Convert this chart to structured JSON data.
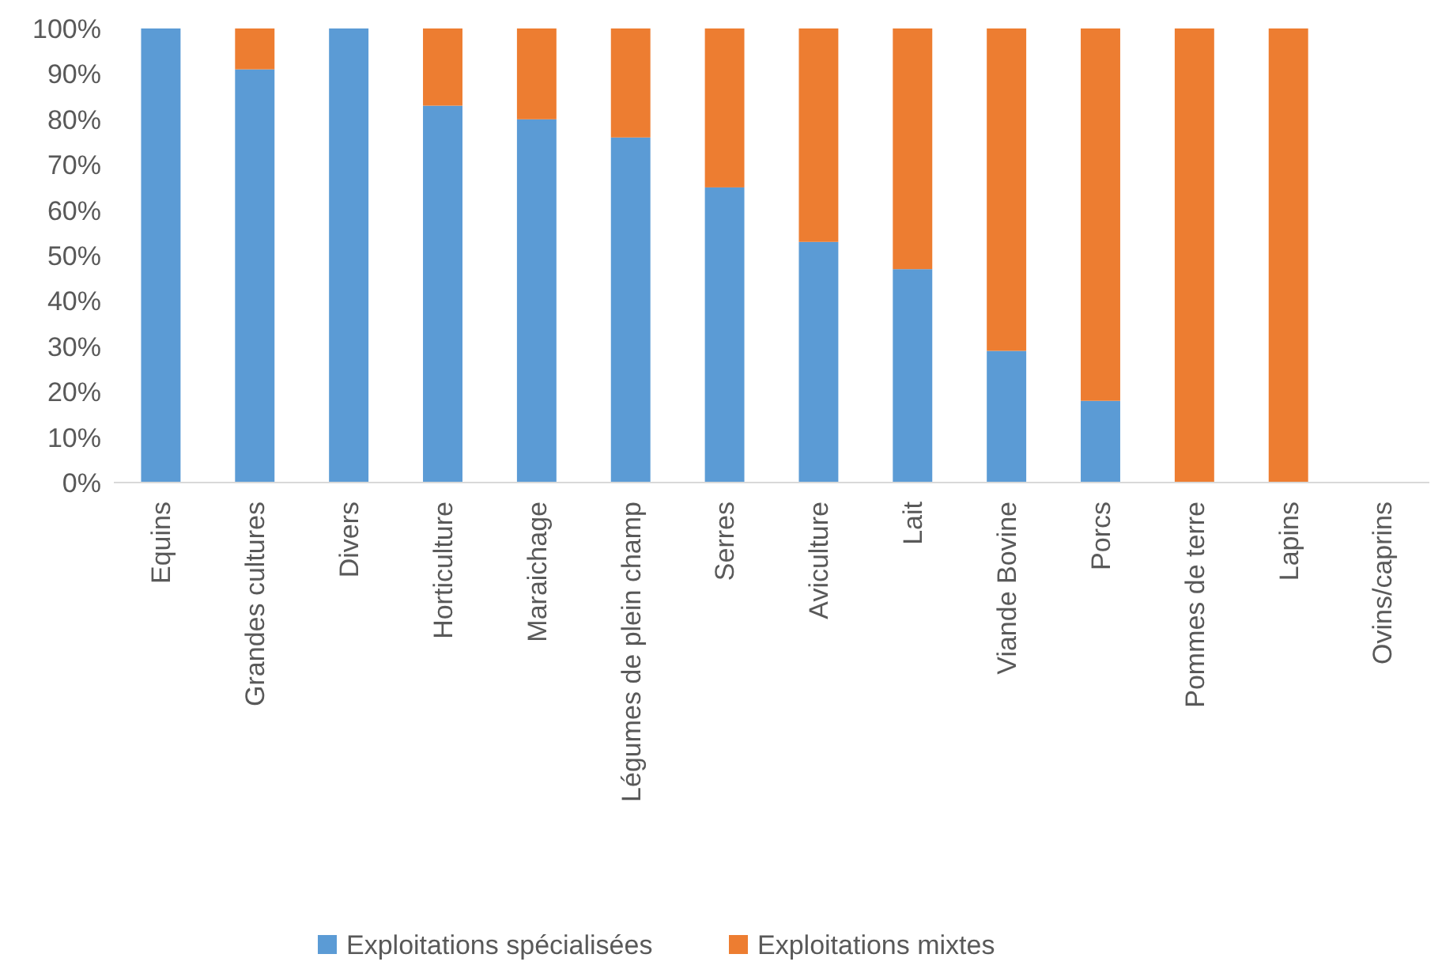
{
  "chart_data": {
    "type": "bar",
    "stacked": true,
    "categories": [
      "Equins",
      "Grandes cultures",
      "Divers",
      "Horticulture",
      "Maraichage",
      "Légumes de plein champ",
      "Serres",
      "Aviculture",
      "Lait",
      "Viande Bovine",
      "Porcs",
      "Pommes de terre",
      "Lapins",
      "Ovins/caprins"
    ],
    "series": [
      {
        "name": "Exploitations spécialisées",
        "color": "#5b9bd5",
        "values": [
          100,
          91,
          100,
          83,
          80,
          76,
          65,
          53,
          47,
          29,
          18,
          0,
          0,
          null
        ]
      },
      {
        "name": "Exploitations mixtes",
        "color": "#ed7d31",
        "values": [
          0,
          9,
          0,
          17,
          20,
          24,
          35,
          47,
          53,
          71,
          82,
          100,
          100,
          null
        ]
      }
    ],
    "ylim": [
      0,
      100
    ],
    "yticks": [
      {
        "value": 0,
        "label": "0%"
      },
      {
        "value": 10,
        "label": "10%"
      },
      {
        "value": 20,
        "label": "20%"
      },
      {
        "value": 30,
        "label": "30%"
      },
      {
        "value": 40,
        "label": "40%"
      },
      {
        "value": 50,
        "label": "50%"
      },
      {
        "value": 60,
        "label": "60%"
      },
      {
        "value": 70,
        "label": "70%"
      },
      {
        "value": 80,
        "label": "80%"
      },
      {
        "value": 90,
        "label": "90%"
      },
      {
        "value": 100,
        "label": "100%"
      }
    ],
    "legend": "bottom"
  }
}
